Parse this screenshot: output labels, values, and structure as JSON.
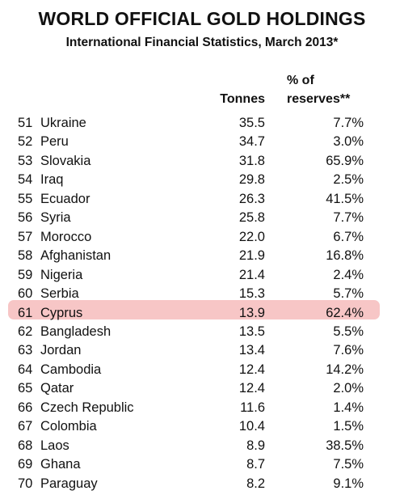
{
  "header": {
    "title": "WORLD OFFICIAL GOLD HOLDINGS",
    "subtitle": "International Financial Statistics, March 2013*"
  },
  "table": {
    "columns": [
      "Tonnes",
      "% of reserves**"
    ],
    "column_lines": [
      [
        "Tonnes"
      ],
      [
        "% of",
        "reserves**"
      ]
    ],
    "rows": [
      [
        "51",
        "Ukraine",
        "35.5",
        "7.7%"
      ],
      [
        "52",
        "Peru",
        "34.7",
        "3.0%"
      ],
      [
        "53",
        "Slovakia",
        "31.8",
        "65.9%"
      ],
      [
        "54",
        "Iraq",
        "29.8",
        "2.5%"
      ],
      [
        "55",
        "Ecuador",
        "26.3",
        "41.5%"
      ],
      [
        "56",
        "Syria",
        "25.8",
        "7.7%"
      ],
      [
        "57",
        "Morocco",
        "22.0",
        "6.7%"
      ],
      [
        "58",
        "Afghanistan",
        "21.9",
        "16.8%"
      ],
      [
        "59",
        "Nigeria",
        "21.4",
        "2.4%"
      ],
      [
        "60",
        "Serbia",
        "15.3",
        "5.7%"
      ],
      [
        "61",
        "Cyprus",
        "13.9",
        "62.4%"
      ],
      [
        "62",
        "Bangladesh",
        "13.5",
        "5.5%"
      ],
      [
        "63",
        "Jordan",
        "13.4",
        "7.6%"
      ],
      [
        "64",
        "Cambodia",
        "12.4",
        "14.2%"
      ],
      [
        "65",
        "Qatar",
        "12.4",
        "2.0%"
      ],
      [
        "66",
        "Czech Republic",
        "11.6",
        "1.4%"
      ],
      [
        "67",
        "Colombia",
        "10.4",
        "1.5%"
      ],
      [
        "68",
        "Laos",
        "8.9",
        "38.5%"
      ],
      [
        "69",
        "Ghana",
        "8.7",
        "7.5%"
      ],
      [
        "70",
        "Paraguay",
        "8.2",
        "9.1%"
      ]
    ]
  }
}
